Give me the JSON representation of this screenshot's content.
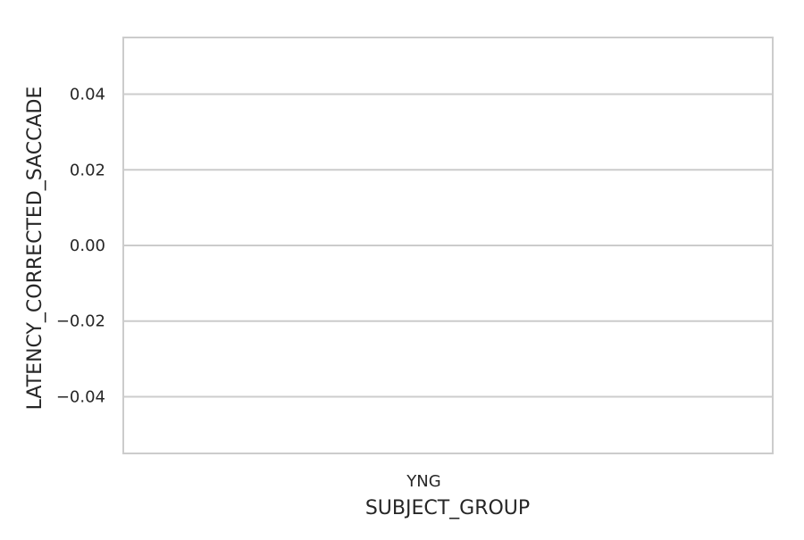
{
  "chart_data": {
    "type": "bar",
    "title": "",
    "xlabel": "SUBJECT_GROUP",
    "ylabel": "LATENCY_CORRECTED_SACCADE",
    "categories": [
      "YNG"
    ],
    "values": [
      0
    ],
    "ylim": [
      -0.055,
      0.055
    ],
    "yticks": [
      0.04,
      0.02,
      0.0,
      -0.02,
      -0.04
    ],
    "ytick_labels": [
      "0.04",
      "0.02",
      "0.00",
      "−0.02",
      "−0.04"
    ],
    "grid": "horizontal",
    "legend": "none",
    "colors": {
      "grid": "#cccccc",
      "frame": "#cccccc",
      "text": "#262626"
    }
  }
}
